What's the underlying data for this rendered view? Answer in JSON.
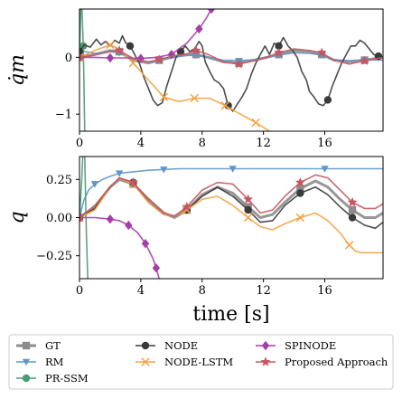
{
  "chart_data": [
    {
      "type": "line",
      "ylabel": "q̇m",
      "xlabel": "",
      "xlim": [
        0,
        19.8
      ],
      "ylim": [
        -1.3,
        0.85
      ],
      "xticks": [
        "0",
        "4",
        "8",
        "12",
        "16"
      ],
      "yticks": [
        {
          "v": 0,
          "label": "0"
        },
        {
          "v": -1,
          "label": "−1"
        }
      ],
      "series": [
        {
          "name": "GT",
          "color": "#8c8c8c",
          "x": [
            0,
            1,
            2,
            2.6,
            3.5,
            4.5,
            5.2,
            6,
            7,
            7.6,
            8.4,
            9.4,
            10.4,
            11.4,
            12.2,
            13,
            14,
            15,
            15.8,
            16.6,
            17.6,
            18.6,
            19.8
          ],
          "y": [
            0,
            0.05,
            0.12,
            0.1,
            -0.05,
            -0.1,
            -0.05,
            0,
            0.05,
            0.05,
            0,
            -0.08,
            -0.1,
            -0.05,
            0,
            0.05,
            0.12,
            0.1,
            0.05,
            -0.05,
            -0.08,
            -0.05,
            0
          ]
        },
        {
          "name": "RM",
          "color": "#5f96c8",
          "x": [
            0,
            1,
            2,
            2.6,
            3.5,
            4.5,
            5.2,
            6,
            7,
            7.6,
            8.4,
            9.4,
            10.4,
            11.4,
            12.2,
            13,
            14,
            15,
            15.8,
            16.6,
            17.6,
            18.6,
            19.8
          ],
          "y": [
            0.12,
            0.07,
            0.1,
            0.08,
            -0.02,
            -0.08,
            -0.05,
            0,
            0.03,
            0.04,
            0,
            -0.05,
            -0.06,
            -0.04,
            0,
            0.04,
            0.08,
            0.07,
            0.04,
            -0.04,
            -0.06,
            -0.04,
            -0.05
          ]
        },
        {
          "name": "PR-SSM",
          "color": "#4c9a73",
          "x": [
            0,
            0.12,
            0.25,
            0.35
          ],
          "y": [
            0,
            1.2,
            0.2,
            -1.4
          ]
        },
        {
          "name": "NODE",
          "color": "#3a3a3a",
          "x": [
            0,
            0.3,
            0.7,
            1.1,
            1.4,
            1.7,
            2.0,
            2.3,
            2.6,
            2.8,
            3.0,
            3.3,
            3.6,
            3.9,
            4.2,
            4.5,
            4.8,
            5.1,
            5.4,
            5.7,
            6.0,
            6.3,
            6.6,
            6.9,
            7.2,
            7.5,
            7.8,
            8.0,
            8.2,
            8.5,
            8.8,
            9.1,
            9.4,
            9.7,
            10.0,
            10.3,
            10.6,
            10.9,
            11.2,
            11.5,
            11.8,
            12.1,
            12.4,
            12.7,
            13.0,
            13.3,
            13.6,
            13.9,
            14.2,
            14.5,
            14.8,
            15.0,
            15.3,
            15.6,
            15.9,
            16.2,
            16.5,
            16.8,
            17.1,
            17.4,
            17.7,
            18.0,
            18.3,
            18.6,
            18.9,
            19.2,
            19.5,
            19.8
          ],
          "y": [
            0.1,
            0.22,
            0.18,
            0.32,
            0.22,
            0.28,
            0.2,
            0.3,
            0.25,
            0.38,
            0.26,
            0.2,
            0.05,
            -0.1,
            -0.35,
            -0.55,
            -0.75,
            -0.85,
            -0.8,
            -0.5,
            -0.25,
            0,
            0.1,
            0.2,
            0.1,
            0.15,
            0.28,
            0.2,
            -0.08,
            -0.25,
            -0.4,
            -0.45,
            -0.55,
            -0.85,
            -0.95,
            -0.82,
            -0.7,
            -0.55,
            -0.3,
            -0.1,
            0.05,
            0.2,
            0.05,
            0.25,
            0.2,
            0.35,
            0.2,
            0.12,
            0,
            -0.25,
            -0.4,
            -0.6,
            -0.7,
            -0.82,
            -0.85,
            -0.75,
            -0.5,
            -0.3,
            -0.1,
            0.05,
            0.2,
            0.2,
            0.3,
            0.25,
            0.15,
            0.05,
            0.02,
            0
          ]
        },
        {
          "name": "NODE-LSTM",
          "color": "#f4a340",
          "x": [
            0,
            1,
            2,
            2.6,
            3.5,
            4.5,
            5.5,
            6.5,
            7.5,
            8.5,
            9.5,
            10.5,
            11.5,
            12.4
          ],
          "y": [
            0,
            0.12,
            0.22,
            0.15,
            -0.1,
            -0.4,
            -0.7,
            -0.78,
            -0.72,
            -0.72,
            -0.85,
            -1.0,
            -1.15,
            -1.3
          ]
        },
        {
          "name": "SPINODE",
          "color": "#a63da8",
          "x": [
            0,
            1,
            2,
            3,
            4,
            5,
            6,
            7,
            7.8,
            8.3,
            8.6
          ],
          "y": [
            0,
            0,
            -0.01,
            -0.01,
            -0.02,
            0,
            0.05,
            0.25,
            0.5,
            0.7,
            0.85
          ]
        },
        {
          "name": "Proposed Approach",
          "color": "#c95560",
          "x": [
            0,
            1,
            2,
            2.6,
            3.5,
            4.5,
            5.2,
            6,
            7,
            7.6,
            8.4,
            9.4,
            10.4,
            11.4,
            12.2,
            13,
            14,
            15,
            15.8,
            16.6,
            17.6,
            18.6,
            19.8
          ],
          "y": [
            0,
            0.04,
            0.1,
            0.12,
            -0.02,
            -0.08,
            -0.04,
            0.02,
            0.06,
            0.12,
            0.05,
            -0.08,
            -0.12,
            -0.06,
            0,
            0.08,
            0.15,
            0.12,
            0.08,
            -0.05,
            -0.12,
            -0.06,
            0
          ]
        }
      ]
    },
    {
      "type": "line",
      "ylabel": "q",
      "xlabel": "time [s]",
      "xlim": [
        0,
        19.8
      ],
      "ylim": [
        -0.4,
        0.4
      ],
      "xticks": [
        "0",
        "4",
        "8",
        "12",
        "16"
      ],
      "yticks": [
        {
          "v": 0.25,
          "label": "0.25"
        },
        {
          "v": 0,
          "label": "0.00"
        },
        {
          "v": -0.25,
          "label": "−0.25"
        }
      ],
      "series": [
        {
          "name": "GT",
          "color": "#8c8c8c",
          "x": [
            0,
            1,
            2,
            2.6,
            3.5,
            4.5,
            5.5,
            6.2,
            7,
            8,
            9,
            10,
            11,
            11.8,
            12.6,
            13.4,
            14.4,
            15.4,
            16.2,
            17,
            17.8,
            18.6,
            19.3,
            19.8
          ],
          "y": [
            0,
            0.07,
            0.2,
            0.25,
            0.22,
            0.12,
            0.03,
            0,
            0.05,
            0.15,
            0.2,
            0.16,
            0.07,
            0,
            0.02,
            0.1,
            0.19,
            0.24,
            0.2,
            0.12,
            0.05,
            0,
            0,
            0.03
          ]
        },
        {
          "name": "RM",
          "color": "#5f96c8",
          "x": [
            0,
            0.3,
            0.6,
            1,
            1.5,
            2,
            2.6,
            3.5,
            4.5,
            5.5,
            6.5,
            8,
            10,
            12,
            14,
            16,
            18,
            19.8
          ],
          "y": [
            0,
            0.12,
            0.18,
            0.22,
            0.25,
            0.27,
            0.29,
            0.3,
            0.31,
            0.315,
            0.32,
            0.32,
            0.32,
            0.32,
            0.32,
            0.32,
            0.32,
            0.32
          ]
        },
        {
          "name": "PR-SSM",
          "color": "#4c9a73",
          "x": [
            0,
            0.15,
            0.3,
            0.45,
            0.6
          ],
          "y": [
            0,
            0.25,
            0.6,
            -0.1,
            -0.6
          ]
        },
        {
          "name": "NODE",
          "color": "#3a3a3a",
          "x": [
            0,
            1,
            2,
            2.6,
            3.5,
            4.5,
            5.5,
            6.2,
            7,
            8,
            9,
            10,
            11,
            11.8,
            12.6,
            13.4,
            14.4,
            15.4,
            16.2,
            17,
            17.8,
            18.6,
            19.3,
            19.8
          ],
          "y": [
            0,
            0.06,
            0.2,
            0.26,
            0.23,
            0.1,
            0.02,
            0.01,
            0.05,
            0.14,
            0.2,
            0.14,
            0.05,
            -0.03,
            -0.02,
            0.08,
            0.16,
            0.2,
            0.15,
            0.07,
            0,
            -0.05,
            -0.07,
            -0.03
          ]
        },
        {
          "name": "NODE-LSTM",
          "color": "#f4a340",
          "x": [
            0,
            1,
            2,
            2.6,
            3.5,
            4.5,
            5.5,
            6.2,
            7,
            8,
            9,
            10,
            11,
            11.8,
            12.6,
            13.4,
            14.4,
            15.4,
            16.2,
            17,
            17.6,
            18,
            18.4,
            19.8
          ],
          "y": [
            0,
            0.05,
            0.2,
            0.26,
            0.22,
            0.1,
            0.02,
            0.01,
            0.05,
            0.12,
            0.14,
            0.08,
            0,
            -0.06,
            -0.08,
            -0.04,
            0,
            0.03,
            -0.02,
            -0.1,
            -0.18,
            -0.22,
            -0.23,
            -0.23
          ]
        },
        {
          "name": "SPINODE",
          "color": "#a63da8",
          "x": [
            0,
            1,
            2,
            2.6,
            3.2,
            3.8,
            4.3,
            4.8,
            5.0,
            5.2
          ],
          "y": [
            0,
            0,
            -0.01,
            -0.02,
            -0.05,
            -0.1,
            -0.17,
            -0.27,
            -0.33,
            -0.4
          ]
        },
        {
          "name": "Proposed Approach",
          "color": "#c95560",
          "x": [
            0,
            1,
            2,
            2.6,
            3.5,
            4.5,
            5.5,
            6.2,
            7,
            8,
            9,
            10,
            11,
            11.8,
            12.6,
            13.4,
            14.4,
            15.4,
            16.2,
            17,
            17.8,
            18.6,
            19.3,
            19.8
          ],
          "y": [
            0,
            0.08,
            0.2,
            0.26,
            0.23,
            0.12,
            0.03,
            0.01,
            0.07,
            0.18,
            0.23,
            0.22,
            0.12,
            0.03,
            0.05,
            0.14,
            0.23,
            0.28,
            0.26,
            0.18,
            0.1,
            0.06,
            0.06,
            0.09
          ]
        }
      ]
    }
  ],
  "legend": [
    {
      "label": "GT",
      "color": "#8c8c8c",
      "marker": "square"
    },
    {
      "label": "NODE",
      "color": "#3a3a3a",
      "marker": "circle"
    },
    {
      "label": "SPINODE",
      "color": "#a63da8",
      "marker": "diamond"
    },
    {
      "label": "RM",
      "color": "#5f96c8",
      "marker": "triangle-down"
    },
    {
      "label": "NODE-LSTM",
      "color": "#f4a340",
      "marker": "x"
    },
    {
      "label": "Proposed Approach",
      "color": "#c95560",
      "marker": "star"
    },
    {
      "label": "PR-SSM",
      "color": "#4c9a73",
      "marker": "circle"
    }
  ]
}
